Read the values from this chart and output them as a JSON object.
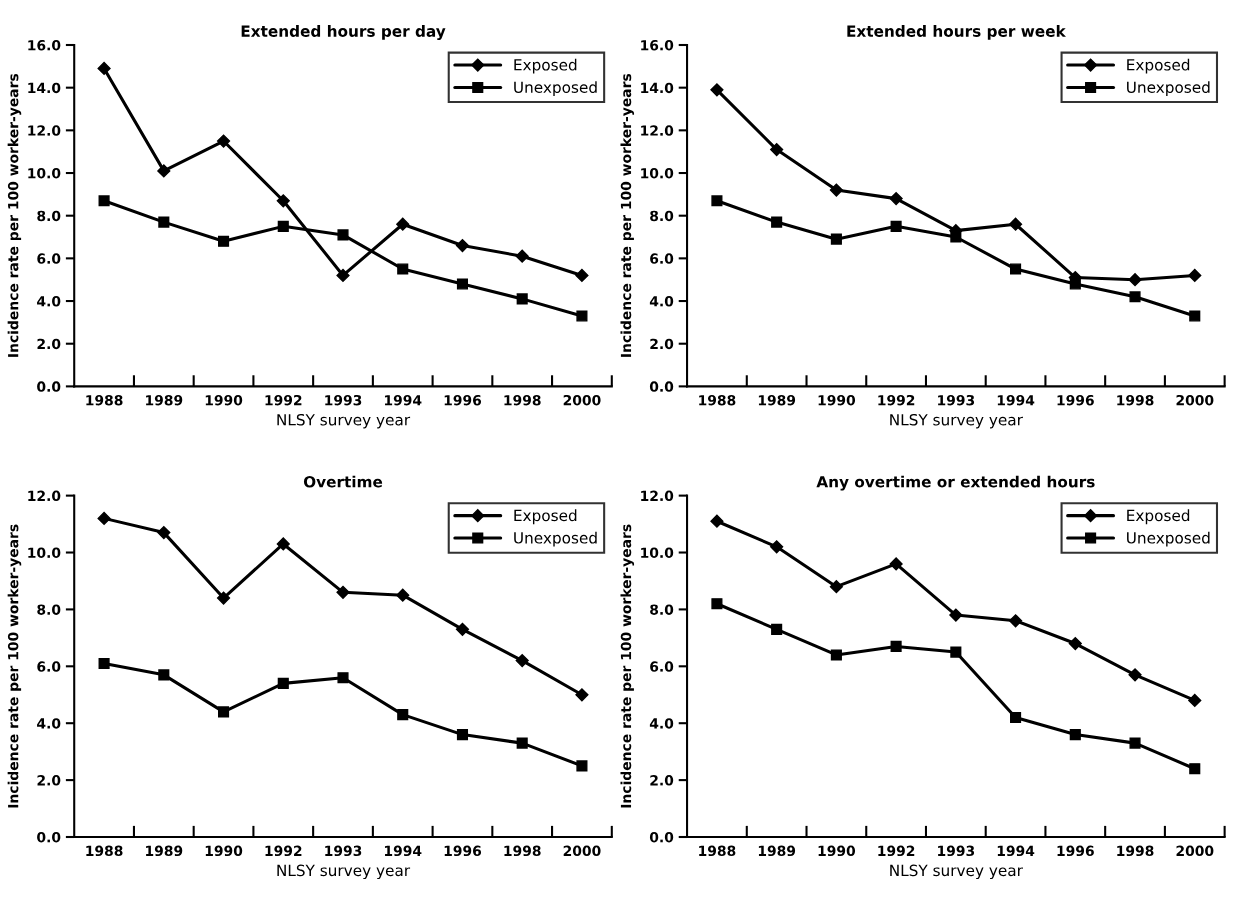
{
  "chart_data": [
    {
      "type": "line",
      "title": "Extended hours per day",
      "xlabel": "NLSY survey year",
      "ylabel": "Incidence rate per 100 worker-years",
      "categories": [
        "1988",
        "1989",
        "1990",
        "1992",
        "1993",
        "1994",
        "1996",
        "1998",
        "2000"
      ],
      "series": [
        {
          "name": "Exposed",
          "color": "#000000",
          "marker": "diamond",
          "values": [
            14.9,
            10.1,
            11.5,
            8.7,
            5.2,
            7.6,
            6.6,
            6.1,
            5.2
          ]
        },
        {
          "name": "Unexposed",
          "color": "#000000",
          "marker": "square",
          "values": [
            8.7,
            7.7,
            6.8,
            7.5,
            7.1,
            5.5,
            4.8,
            4.1,
            3.3
          ]
        }
      ],
      "ylim": [
        0,
        16
      ],
      "yticks": [
        {
          "value": 0,
          "label": "0.0"
        },
        {
          "value": 2,
          "label": "2.0"
        },
        {
          "value": 4,
          "label": "4.0"
        },
        {
          "value": 6,
          "label": "6.0"
        },
        {
          "value": 8,
          "label": "8.0"
        },
        {
          "value": 10,
          "label": "10.0"
        },
        {
          "value": 12,
          "label": "12.0"
        },
        {
          "value": 14,
          "label": "14.0"
        },
        {
          "value": 16,
          "label": "16.0"
        }
      ],
      "legend": "top right",
      "grid": false
    },
    {
      "type": "line",
      "title": "Extended hours per week",
      "xlabel": "NLSY survey year",
      "ylabel": "Incidence rate per 100 worker-years",
      "categories": [
        "1988",
        "1989",
        "1990",
        "1992",
        "1993",
        "1994",
        "1996",
        "1998",
        "2000"
      ],
      "series": [
        {
          "name": "Exposed",
          "color": "#000000",
          "marker": "diamond",
          "values": [
            13.9,
            11.1,
            9.2,
            8.8,
            7.3,
            7.6,
            5.1,
            5.0,
            5.2
          ]
        },
        {
          "name": "Unexposed",
          "color": "#000000",
          "marker": "square",
          "values": [
            8.7,
            7.7,
            6.9,
            7.5,
            7.0,
            5.5,
            4.8,
            4.2,
            3.3
          ]
        }
      ],
      "ylim": [
        0,
        16
      ],
      "yticks": [
        {
          "value": 0,
          "label": "0.0"
        },
        {
          "value": 2,
          "label": "2.0"
        },
        {
          "value": 4,
          "label": "4.0"
        },
        {
          "value": 6,
          "label": "6.0"
        },
        {
          "value": 8,
          "label": "8.0"
        },
        {
          "value": 10,
          "label": "10.0"
        },
        {
          "value": 12,
          "label": "12.0"
        },
        {
          "value": 14,
          "label": "14.0"
        },
        {
          "value": 16,
          "label": "16.0"
        }
      ],
      "legend": "top right",
      "grid": false
    },
    {
      "type": "line",
      "title": "Overtime",
      "xlabel": "NLSY survey year",
      "ylabel": "Incidence rate per 100 worker-years",
      "categories": [
        "1988",
        "1989",
        "1990",
        "1992",
        "1993",
        "1994",
        "1996",
        "1998",
        "2000"
      ],
      "series": [
        {
          "name": "Exposed",
          "color": "#000000",
          "marker": "diamond",
          "values": [
            11.2,
            10.7,
            8.4,
            10.3,
            8.6,
            8.5,
            7.3,
            6.2,
            5.0
          ]
        },
        {
          "name": "Unexposed",
          "color": "#000000",
          "marker": "square",
          "values": [
            6.1,
            5.7,
            4.4,
            5.4,
            5.6,
            4.3,
            3.6,
            3.3,
            2.5
          ]
        }
      ],
      "ylim": [
        0,
        12
      ],
      "yticks": [
        {
          "value": 0,
          "label": "0.0"
        },
        {
          "value": 2,
          "label": "2.0"
        },
        {
          "value": 4,
          "label": "4.0"
        },
        {
          "value": 6,
          "label": "6.0"
        },
        {
          "value": 8,
          "label": "8.0"
        },
        {
          "value": 10,
          "label": "10.0"
        },
        {
          "value": 12,
          "label": "12.0"
        }
      ],
      "legend": "top right",
      "grid": false
    },
    {
      "type": "line",
      "title": "Any overtime or extended hours",
      "xlabel": "NLSY survey year",
      "ylabel": "Incidence rate per 100 worker-years",
      "categories": [
        "1988",
        "1989",
        "1990",
        "1992",
        "1993",
        "1994",
        "1996",
        "1998",
        "2000"
      ],
      "series": [
        {
          "name": "Exposed",
          "color": "#000000",
          "marker": "diamond",
          "values": [
            11.1,
            10.2,
            8.8,
            9.6,
            7.8,
            7.6,
            6.8,
            5.7,
            4.8
          ]
        },
        {
          "name": "Unexposed",
          "color": "#000000",
          "marker": "square",
          "values": [
            8.2,
            7.3,
            6.4,
            6.7,
            6.5,
            4.2,
            3.6,
            3.3,
            2.4
          ]
        }
      ],
      "ylim": [
        0,
        12
      ],
      "yticks": [
        {
          "value": 0,
          "label": "0.0"
        },
        {
          "value": 2,
          "label": "2.0"
        },
        {
          "value": 4,
          "label": "4.0"
        },
        {
          "value": 6,
          "label": "6.0"
        },
        {
          "value": 8,
          "label": "8.0"
        },
        {
          "value": 10,
          "label": "10.0"
        },
        {
          "value": 12,
          "label": "12.0"
        }
      ],
      "legend": "top right",
      "grid": false
    }
  ]
}
